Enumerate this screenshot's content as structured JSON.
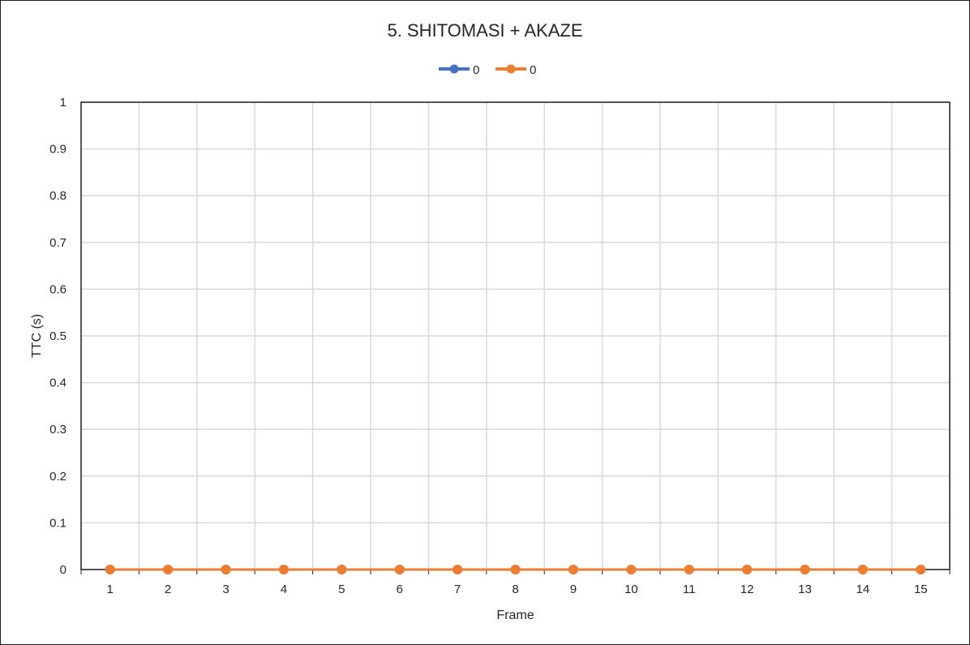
{
  "chart_data": {
    "type": "line",
    "title": "5. SHITOMASI + AKAZE",
    "xlabel": "Frame",
    "ylabel": "TTC (s)",
    "categories": [
      "1",
      "2",
      "3",
      "4",
      "5",
      "6",
      "7",
      "8",
      "9",
      "10",
      "11",
      "12",
      "13",
      "14",
      "15"
    ],
    "ylim": [
      0,
      1
    ],
    "yticks": [
      "0",
      "0.1",
      "0.2",
      "0.3",
      "0.4",
      "0.5",
      "0.6",
      "0.7",
      "0.8",
      "0.9",
      "1"
    ],
    "grid": true,
    "legend_position": "top-center",
    "series": [
      {
        "name": "0",
        "color": "#4472c4",
        "values": [
          0,
          0,
          0,
          0,
          0,
          0,
          0,
          0,
          0,
          0,
          0,
          0,
          0,
          0,
          0
        ]
      },
      {
        "name": "0",
        "color": "#ed7d31",
        "values": [
          0,
          0,
          0,
          0,
          0,
          0,
          0,
          0,
          0,
          0,
          0,
          0,
          0,
          0,
          0
        ]
      }
    ]
  }
}
